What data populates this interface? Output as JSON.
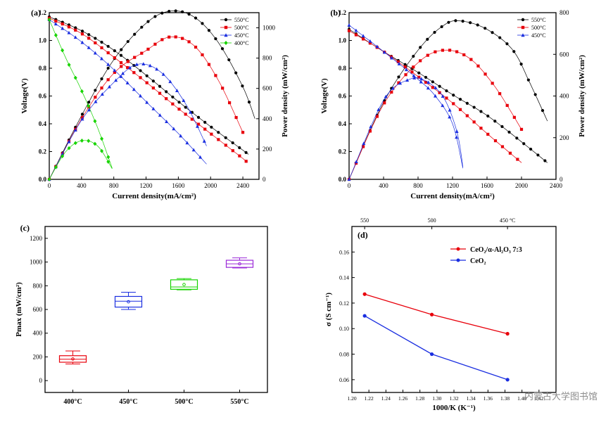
{
  "watermark": "内蒙古大学图书馆",
  "chart_data": [
    {
      "type": "line",
      "panel_label": "(a)",
      "xlabel": "Current density(mA/cm²)",
      "ylabel": "Voltage(V)",
      "y2label": "Power density (mW/cm²)",
      "xlim": [
        0,
        2600
      ],
      "ylim": [
        0,
        1.2
      ],
      "y2lim": [
        0,
        1100
      ],
      "xticks": [
        "0",
        "400",
        "800",
        "1200",
        "1600",
        "2000",
        "2400"
      ],
      "yticks": [
        "0.0",
        "0.2",
        "0.4",
        "0.6",
        "0.8",
        "1.0",
        "1.2"
      ],
      "y2ticks": [
        "0",
        "200",
        "400",
        "600",
        "800",
        "1000"
      ],
      "legend_position": "top-right",
      "series": [
        {
          "name": "550°C",
          "color": "#000000",
          "marker": "circle",
          "voltage": {
            "x": [
              0,
              400,
              800,
              1200,
              1600,
              2000,
              2400,
              2470
            ],
            "y": [
              1.17,
              1.07,
              0.93,
              0.75,
              0.56,
              0.38,
              0.21,
              0.18
            ]
          },
          "power": {
            "x": [
              0,
              400,
              800,
              1200,
              1500,
              1800,
              2100,
              2400,
              2550
            ],
            "y": [
              0,
              420,
              790,
              1030,
              1110,
              1070,
              900,
              610,
              400
            ]
          }
        },
        {
          "name": "500°C",
          "color": "#e8000b",
          "marker": "square",
          "voltage": {
            "x": [
              0,
              400,
              800,
              1200,
              1600,
              2000,
              2400,
              2450
            ],
            "y": [
              1.16,
              1.05,
              0.88,
              0.7,
              0.51,
              0.33,
              0.15,
              0.12
            ]
          },
          "power": {
            "x": [
              0,
              400,
              800,
              1200,
              1500,
              1800,
              2100,
              2400
            ],
            "y": [
              0,
              400,
              700,
              850,
              940,
              880,
              650,
              310
            ]
          }
        },
        {
          "name": "450°C",
          "color": "#1a2ee0",
          "marker": "triangle",
          "voltage": {
            "x": [
              0,
              400,
              800,
              1200,
              1600,
              1950
            ],
            "y": [
              1.15,
              0.99,
              0.79,
              0.56,
              0.33,
              0.11
            ]
          },
          "power": {
            "x": [
              0,
              400,
              800,
              1100,
              1400,
              1700,
              1950
            ],
            "y": [
              0,
              390,
              640,
              760,
              700,
              490,
              220
            ]
          }
        },
        {
          "name": "400°C",
          "color": "#17d400",
          "marker": "diamond",
          "voltage": {
            "x": [
              0,
              200,
              400,
              600,
              780
            ],
            "y": [
              1.15,
              0.88,
              0.64,
              0.37,
              0.08
            ]
          },
          "power": {
            "x": [
              0,
              200,
              400,
              600,
              780
            ],
            "y": [
              0,
              180,
              255,
              220,
              70
            ]
          }
        }
      ]
    },
    {
      "type": "line",
      "panel_label": "(b)",
      "xlabel": "Current density(mA/cm²)",
      "ylabel": "Voltage(V)",
      "y2label": "Power density (mW/cm²)",
      "xlim": [
        0,
        2400
      ],
      "ylim": [
        0,
        1.2
      ],
      "y2lim": [
        0,
        800
      ],
      "xticks": [
        "0",
        "400",
        "800",
        "1200",
        "1600",
        "2000",
        "2400"
      ],
      "yticks": [
        "0.0",
        "0.2",
        "0.4",
        "0.6",
        "0.8",
        "1.0",
        "1.2"
      ],
      "y2ticks": [
        "0",
        "200",
        "400",
        "600",
        "800"
      ],
      "legend_position": "top-right",
      "series": [
        {
          "name": "550°C",
          "color": "#000000",
          "marker": "circle",
          "voltage": {
            "x": [
              0,
              400,
              800,
              1200,
              1600,
              2000,
              2300
            ],
            "y": [
              1.08,
              0.92,
              0.77,
              0.61,
              0.46,
              0.27,
              0.12
            ]
          },
          "power": {
            "x": [
              0,
              400,
              800,
              1100,
              1300,
              1600,
              1900,
              2100,
              2300
            ],
            "y": [
              0,
              370,
              620,
              740,
              760,
              720,
              620,
              460,
              280
            ]
          }
        },
        {
          "name": "500°C",
          "color": "#e8000b",
          "marker": "square",
          "voltage": {
            "x": [
              0,
              400,
              800,
              1200,
              1600,
              2000
            ],
            "y": [
              1.07,
              0.92,
              0.74,
              0.55,
              0.33,
              0.12
            ]
          },
          "power": {
            "x": [
              0,
              400,
              800,
              1100,
              1400,
              1700,
              2000
            ],
            "y": [
              0,
              360,
              560,
              620,
              580,
              440,
              240
            ]
          }
        },
        {
          "name": "450°C",
          "color": "#1a2ee0",
          "marker": "triangle",
          "voltage": {
            "x": [
              0,
              400,
              800,
              1000,
              1200,
              1320
            ],
            "y": [
              1.11,
              0.92,
              0.72,
              0.6,
              0.4,
              0.08
            ]
          },
          "power": {
            "x": [
              0,
              400,
              700,
              900,
              1100,
              1250,
              1320
            ],
            "y": [
              0,
              380,
              480,
              470,
              390,
              230,
              60
            ]
          }
        }
      ]
    },
    {
      "type": "box",
      "panel_label": "(c)",
      "ylabel": "Pmax (mW/cm²)",
      "ylim": [
        -100,
        1300
      ],
      "yticks": [
        "0",
        "200",
        "400",
        "600",
        "800",
        "1000",
        "1200"
      ],
      "categories": [
        "400°C",
        "450°C",
        "500°C",
        "550°C"
      ],
      "boxes": [
        {
          "color": "#e8000b",
          "min": 140,
          "q1": 155,
          "median": 180,
          "q3": 210,
          "max": 250
        },
        {
          "color": "#1a2ee0",
          "min": 600,
          "q1": 620,
          "median": 670,
          "q3": 710,
          "max": 745
        },
        {
          "color": "#17d400",
          "min": 765,
          "q1": 770,
          "median": 790,
          "q3": 850,
          "max": 860
        },
        {
          "color": "#9b28d8",
          "min": 950,
          "q1": 955,
          "median": 985,
          "q3": 1015,
          "max": 1035
        }
      ]
    },
    {
      "type": "line",
      "panel_label": "(d)",
      "xlabel": "1000/K (K⁻¹)",
      "ylabel": "σ (S cm⁻¹)",
      "xlim": [
        1.2,
        1.44
      ],
      "ylim": [
        0.05,
        0.18
      ],
      "xticks": [
        "1.20",
        "1.22",
        "1.24",
        "1.26",
        "1.28",
        "1.30",
        "1.32",
        "1.34",
        "1.36",
        "1.38",
        "1.40",
        "1.42"
      ],
      "yticks": [
        "0.06",
        "0.08",
        "0.10",
        "0.12",
        "0.14",
        "0.16"
      ],
      "top_axis_ticks": [
        "550",
        "500",
        "450 °C"
      ],
      "legend_position": "top-right",
      "series": [
        {
          "name": "CeO₂/α-Al₂O₃ 7:3",
          "color": "#e8000b",
          "x": [
            1.215,
            1.294,
            1.383
          ],
          "y": [
            0.127,
            0.111,
            0.096
          ]
        },
        {
          "name": "CeO₂",
          "color": "#1a2ee0",
          "x": [
            1.215,
            1.294,
            1.383
          ],
          "y": [
            0.11,
            0.08,
            0.06
          ]
        }
      ]
    }
  ]
}
